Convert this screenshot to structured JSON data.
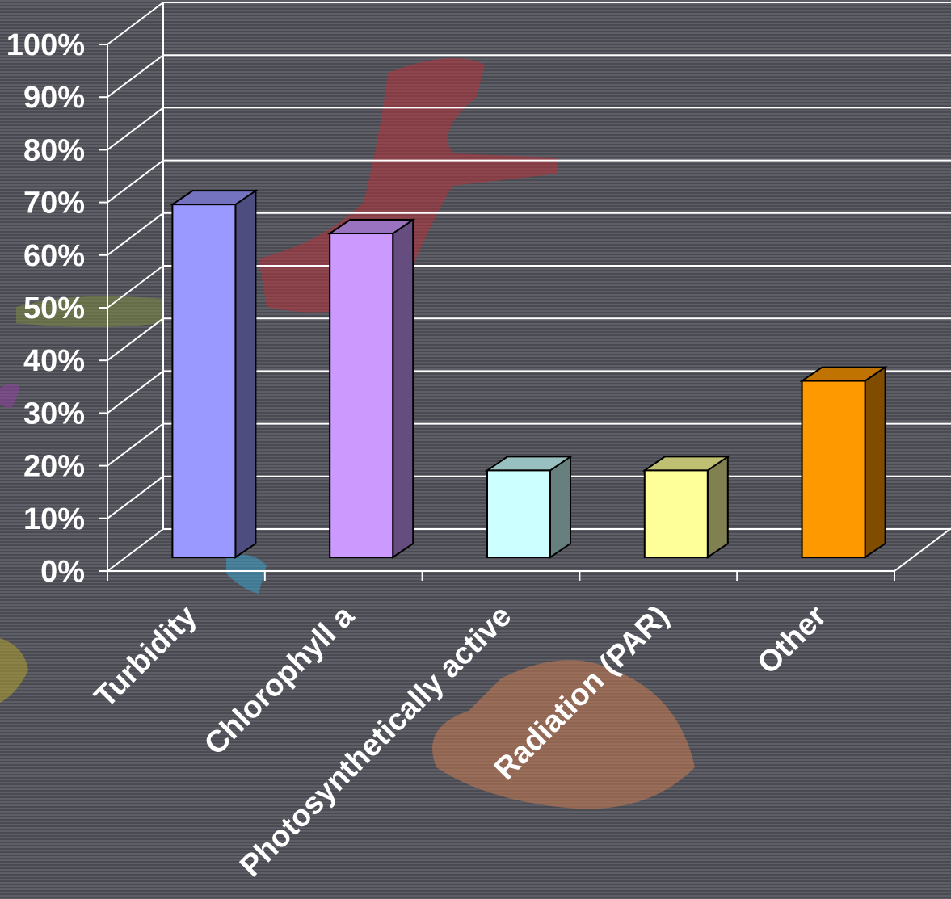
{
  "chart_data": {
    "type": "bar",
    "style": "3d-clustered-column",
    "categories": [
      "Turbidity",
      "Chlorophyll a",
      "Photosynthetically active",
      "Radiation (PAR)",
      "Other"
    ],
    "values": [
      67,
      61.5,
      16.5,
      16.5,
      33.5
    ],
    "value_unit": "%",
    "ylim": [
      0,
      100
    ],
    "ytick_labels": [
      "0%",
      "10%",
      "20%",
      "30%",
      "40%",
      "50%",
      "60%",
      "70%",
      "80%",
      "90%",
      "100%"
    ],
    "grid": true,
    "legend": "none",
    "title": "",
    "xlabel": "",
    "ylabel": "",
    "colors": {
      "bars": [
        "#9999ff",
        "#cc99ff",
        "#ccffff",
        "#ffff99",
        "#ff9900"
      ],
      "bar_sides": [
        "#4d4d80",
        "#664d80",
        "#668080",
        "#808050",
        "#804d00"
      ],
      "bar_tops": [
        "#7373c0",
        "#9973c0",
        "#99c0c0",
        "#c0c073",
        "#c07300"
      ],
      "gridlines": "#ffffff",
      "text": "#ffffff",
      "background": "#55555d"
    }
  }
}
